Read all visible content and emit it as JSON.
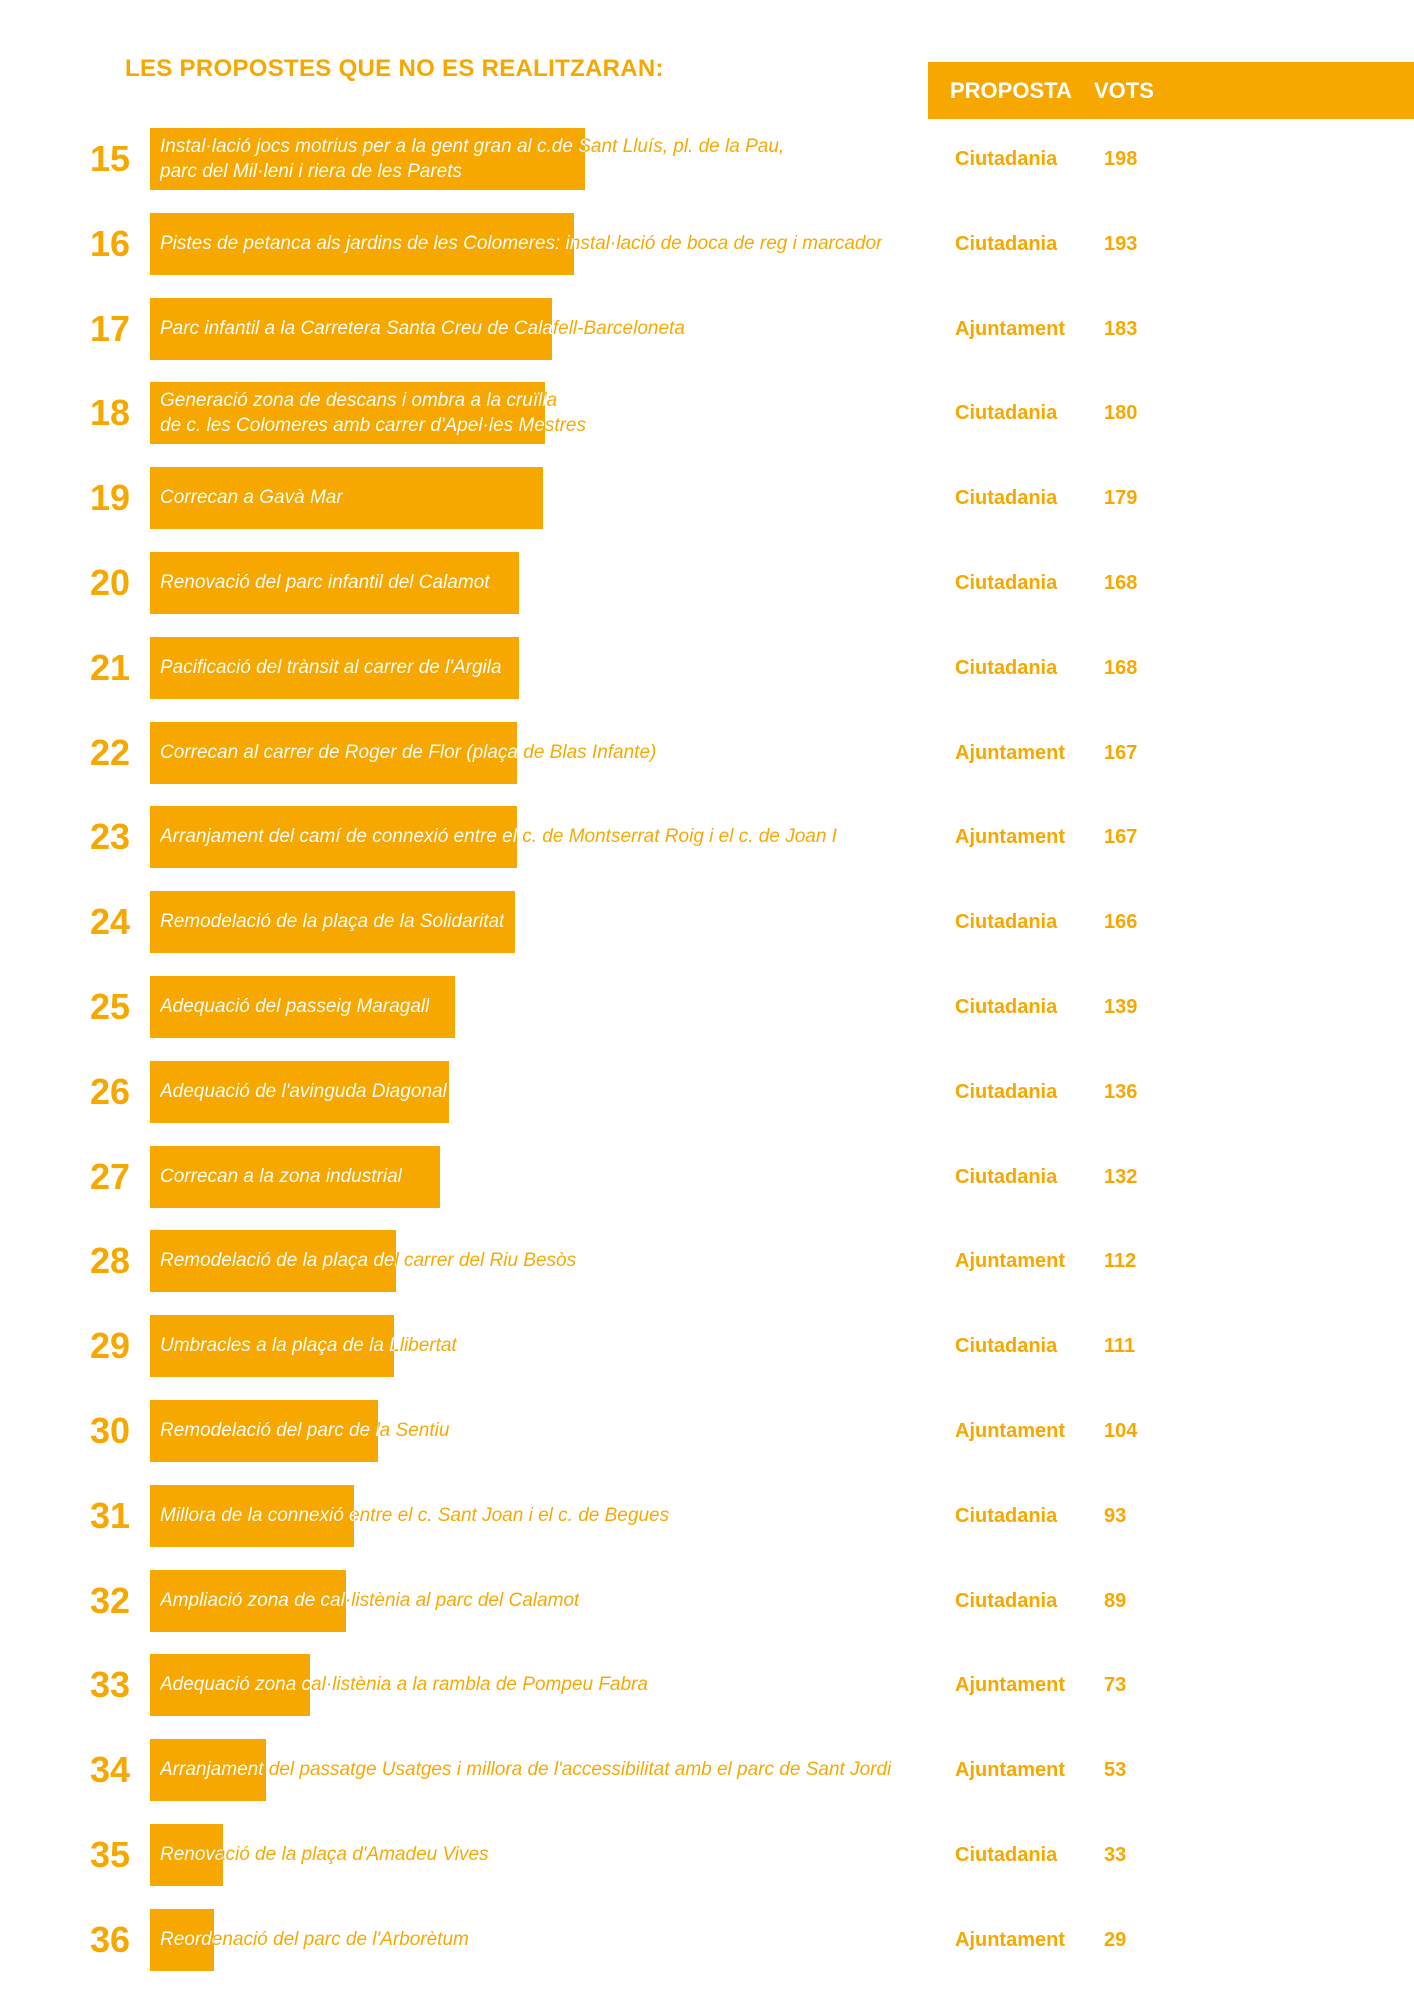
{
  "page": {
    "title": "LES PROPOSTES QUE NO ES REALITZARAN:",
    "header_proposta": "PROPOSTA",
    "header_vots": "VOTS"
  },
  "colors": {
    "accent": "#F6A800",
    "text_on_accent": "#FFFFFF"
  },
  "chart_data": {
    "type": "bar",
    "orientation": "horizontal",
    "title": "LES PROPOSTES QUE NO ES REALITZARAN:",
    "columns": [
      "PROPOSTA",
      "VOTS"
    ],
    "rows": [
      {
        "rank": "15",
        "lines": [
          "Instal·lació jocs motrius per a la gent gran al c.de Sant Lluís, pl. de la Pau,",
          "parc del Mil·leni i riera de les Parets"
        ],
        "origin": "Ciutadania",
        "votes": 198
      },
      {
        "rank": "16",
        "lines": [
          "Pistes de petanca als jardins de les Colomeres: instal·lació de boca de reg i marcador"
        ],
        "origin": "Ciutadania",
        "votes": 193
      },
      {
        "rank": "17",
        "lines": [
          "Parc infantil a la Carretera Santa Creu de Calafell-Barceloneta"
        ],
        "origin": "Ajuntament",
        "votes": 183
      },
      {
        "rank": "18",
        "lines": [
          "Generació zona de descans i ombra a la cruïlla",
          "de c. les Colomeres amb carrer d'Apel·les Mestres"
        ],
        "origin": "Ciutadania",
        "votes": 180
      },
      {
        "rank": "19",
        "lines": [
          "Correcan a Gavà Mar"
        ],
        "origin": "Ciutadania",
        "votes": 179
      },
      {
        "rank": "20",
        "lines": [
          "Renovació del parc infantil del Calamot"
        ],
        "origin": "Ciutadania",
        "votes": 168
      },
      {
        "rank": "21",
        "lines": [
          "Pacificació del trànsit al carrer de l'Argila"
        ],
        "origin": "Ciutadania",
        "votes": 168
      },
      {
        "rank": "22",
        "lines": [
          "Correcan al carrer de Roger de Flor (plaça de Blas Infante)"
        ],
        "origin": "Ajuntament",
        "votes": 167
      },
      {
        "rank": "23",
        "lines": [
          "Arranjament del camí de connexió entre el c. de Montserrat Roig i el c. de Joan I"
        ],
        "origin": "Ajuntament",
        "votes": 167
      },
      {
        "rank": "24",
        "lines": [
          "Remodelació de la plaça de la Solidaritat"
        ],
        "origin": "Ciutadania",
        "votes": 166
      },
      {
        "rank": "25",
        "lines": [
          "Adequació del passeig Maragall"
        ],
        "origin": "Ciutadania",
        "votes": 139
      },
      {
        "rank": "26",
        "lines": [
          "Adequació de l'avinguda Diagonal"
        ],
        "origin": "Ciutadania",
        "votes": 136
      },
      {
        "rank": "27",
        "lines": [
          "Correcan a la zona industrial"
        ],
        "origin": "Ciutadania",
        "votes": 132
      },
      {
        "rank": "28",
        "lines": [
          "Remodelació de la plaça del carrer del Riu Besòs"
        ],
        "origin": "Ajuntament",
        "votes": 112
      },
      {
        "rank": "29",
        "lines": [
          "Umbracles a la plaça de la Llibertat"
        ],
        "origin": "Ciutadania",
        "votes": 111
      },
      {
        "rank": "30",
        "lines": [
          "Remodelació del parc de la Sentiu"
        ],
        "origin": "Ajuntament",
        "votes": 104
      },
      {
        "rank": "31",
        "lines": [
          "Millora de la connexió entre el c. Sant Joan i el c. de Begues"
        ],
        "origin": "Ciutadania",
        "votes": 93
      },
      {
        "rank": "32",
        "lines": [
          "Ampliació zona de cal·listènia al parc del Calamot"
        ],
        "origin": "Ciutadania",
        "votes": 89
      },
      {
        "rank": "33",
        "lines": [
          "Adequació zona cal·listènia a la rambla de Pompeu Fabra"
        ],
        "origin": "Ajuntament",
        "votes": 73
      },
      {
        "rank": "34",
        "lines": [
          "Arranjament del passatge Usatges i millora de l'accessibilitat amb el parc de Sant Jordi"
        ],
        "origin": "Ajuntament",
        "votes": 53
      },
      {
        "rank": "35",
        "lines": [
          "Renovació de la plaça d'Amadeu Vives"
        ],
        "origin": "Ciutadania",
        "votes": 33
      },
      {
        "rank": "36",
        "lines": [
          "Reordenació del parc de l'Arborètum"
        ],
        "origin": "Ajuntament",
        "votes": 29
      }
    ]
  }
}
